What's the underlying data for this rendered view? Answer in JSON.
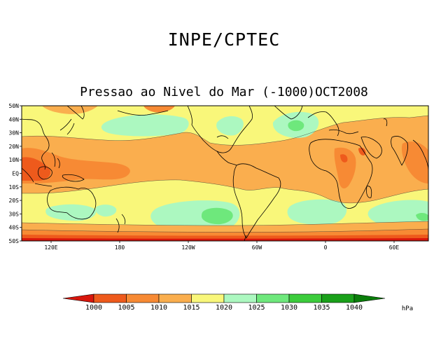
{
  "header": {
    "organization": "INPE/CPTEC",
    "map_title": "Pressao ao Nivel do Mar (-1000)OCT2008"
  },
  "map": {
    "latitude_labels": [
      "50N",
      "40N",
      "30N",
      "20N",
      "10N",
      "EQ",
      "10S",
      "20S",
      "30S",
      "40S",
      "50S"
    ],
    "longitude_labels": [
      "120E",
      "180",
      "120W",
      "60W",
      "0",
      "60E"
    ]
  },
  "colorbar": {
    "labels": [
      "1000",
      "1005",
      "1010",
      "1015",
      "1020",
      "1025",
      "1030",
      "1035",
      "1040"
    ],
    "colors": [
      "#d8160c",
      "#ee5a1c",
      "#f78a34",
      "#faae4e",
      "#f9f77a",
      "#acf8c0",
      "#6ee87c",
      "#3ccc3c",
      "#1aa01a",
      "#0a7e0a"
    ],
    "unit": "hPa"
  }
}
